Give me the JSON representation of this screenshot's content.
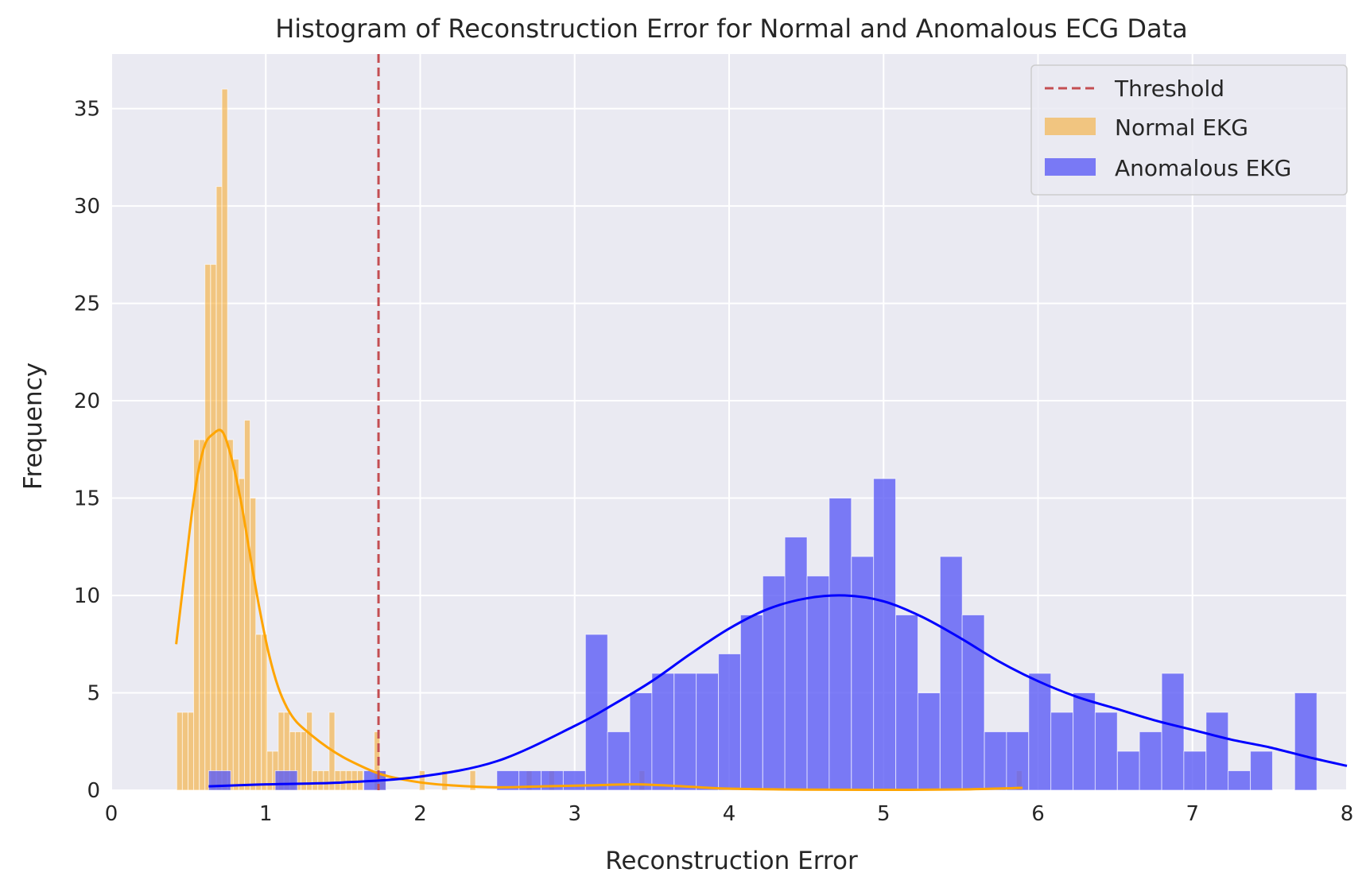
{
  "chart_data": {
    "type": "bar",
    "title": "Histogram of Reconstruction Error for Normal and Anomalous ECG Data",
    "xlabel": "Reconstruction Error",
    "ylabel": "Frequency",
    "xlim": [
      0,
      8
    ],
    "ylim": [
      0,
      37.8
    ],
    "xticks": [
      0,
      1,
      2,
      3,
      4,
      5,
      6,
      7,
      8
    ],
    "yticks": [
      0,
      5,
      10,
      15,
      20,
      25,
      30,
      35
    ],
    "grid": true,
    "legend_position": "top-right",
    "threshold": {
      "name": "Threshold",
      "x": 1.73,
      "color": "#c44e52"
    },
    "colors": {
      "background": "#eaeaf2",
      "grid": "#ffffff",
      "text": "#262626"
    },
    "series": [
      {
        "name": "Normal EKG",
        "color": "#f5a623",
        "fill_opacity": 0.55,
        "kde_color": "#ffa500",
        "bin_width": 0.0365,
        "bins": [
          {
            "x": 0.424,
            "count": 4
          },
          {
            "x": 0.46,
            "count": 4
          },
          {
            "x": 0.497,
            "count": 4
          },
          {
            "x": 0.533,
            "count": 18
          },
          {
            "x": 0.57,
            "count": 18
          },
          {
            "x": 0.606,
            "count": 27
          },
          {
            "x": 0.643,
            "count": 27
          },
          {
            "x": 0.68,
            "count": 31
          },
          {
            "x": 0.716,
            "count": 36
          },
          {
            "x": 0.753,
            "count": 18
          },
          {
            "x": 0.789,
            "count": 17
          },
          {
            "x": 0.826,
            "count": 16
          },
          {
            "x": 0.862,
            "count": 19
          },
          {
            "x": 0.899,
            "count": 15
          },
          {
            "x": 0.935,
            "count": 8
          },
          {
            "x": 0.972,
            "count": 8
          },
          {
            "x": 1.008,
            "count": 2
          },
          {
            "x": 1.045,
            "count": 2
          },
          {
            "x": 1.081,
            "count": 4
          },
          {
            "x": 1.118,
            "count": 4
          },
          {
            "x": 1.155,
            "count": 3
          },
          {
            "x": 1.191,
            "count": 3
          },
          {
            "x": 1.228,
            "count": 3
          },
          {
            "x": 1.264,
            "count": 4
          },
          {
            "x": 1.301,
            "count": 1
          },
          {
            "x": 1.337,
            "count": 1
          },
          {
            "x": 1.374,
            "count": 1
          },
          {
            "x": 1.41,
            "count": 4
          },
          {
            "x": 1.447,
            "count": 1
          },
          {
            "x": 1.483,
            "count": 1
          },
          {
            "x": 1.52,
            "count": 1
          },
          {
            "x": 1.556,
            "count": 1
          },
          {
            "x": 1.593,
            "count": 1
          },
          {
            "x": 1.702,
            "count": 3
          },
          {
            "x": 1.739,
            "count": 1
          },
          {
            "x": 1.994,
            "count": 1
          },
          {
            "x": 2.14,
            "count": 1
          },
          {
            "x": 2.322,
            "count": 1
          },
          {
            "x": 2.687,
            "count": 1
          },
          {
            "x": 2.833,
            "count": 1
          },
          {
            "x": 3.417,
            "count": 1
          },
          {
            "x": 5.86,
            "count": 1
          }
        ],
        "kde": {
          "x": [
            0.42,
            0.48,
            0.54,
            0.6,
            0.66,
            0.72,
            0.78,
            0.84,
            0.9,
            0.96,
            1.02,
            1.08,
            1.14,
            1.2,
            1.3,
            1.4,
            1.5,
            1.6,
            1.7,
            1.8,
            2.0,
            2.2,
            2.5,
            2.8,
            3.1,
            3.4,
            3.7,
            4.0,
            4.5,
            5.0,
            5.5,
            5.9
          ],
          "y": [
            7.5,
            11.5,
            15.3,
            17.6,
            18.3,
            18.4,
            17.0,
            14.8,
            12.0,
            9.3,
            7.0,
            5.3,
            4.2,
            3.5,
            2.8,
            2.2,
            1.7,
            1.3,
            0.95,
            0.7,
            0.4,
            0.25,
            0.15,
            0.2,
            0.25,
            0.3,
            0.2,
            0.08,
            0.03,
            0.02,
            0.04,
            0.12
          ]
        }
      },
      {
        "name": "Anomalous EKG",
        "color": "#5c5cf5",
        "fill_opacity": 0.8,
        "kde_color": "#0000ff",
        "bin_width": 0.1435,
        "bins": [
          {
            "x": 0.63,
            "count": 1
          },
          {
            "x": 1.061,
            "count": 1
          },
          {
            "x": 1.635,
            "count": 1
          },
          {
            "x": 2.496,
            "count": 1
          },
          {
            "x": 2.639,
            "count": 1
          },
          {
            "x": 2.783,
            "count": 1
          },
          {
            "x": 2.926,
            "count": 1
          },
          {
            "x": 3.07,
            "count": 8
          },
          {
            "x": 3.213,
            "count": 3
          },
          {
            "x": 3.357,
            "count": 5
          },
          {
            "x": 3.5,
            "count": 6
          },
          {
            "x": 3.644,
            "count": 6
          },
          {
            "x": 3.787,
            "count": 6
          },
          {
            "x": 3.931,
            "count": 7
          },
          {
            "x": 4.074,
            "count": 9
          },
          {
            "x": 4.218,
            "count": 11
          },
          {
            "x": 4.361,
            "count": 13
          },
          {
            "x": 4.505,
            "count": 11
          },
          {
            "x": 4.648,
            "count": 15
          },
          {
            "x": 4.792,
            "count": 12
          },
          {
            "x": 4.935,
            "count": 16
          },
          {
            "x": 5.079,
            "count": 9
          },
          {
            "x": 5.222,
            "count": 5
          },
          {
            "x": 5.366,
            "count": 12
          },
          {
            "x": 5.509,
            "count": 9
          },
          {
            "x": 5.653,
            "count": 3
          },
          {
            "x": 5.796,
            "count": 3
          },
          {
            "x": 5.94,
            "count": 6
          },
          {
            "x": 6.083,
            "count": 4
          },
          {
            "x": 6.227,
            "count": 5
          },
          {
            "x": 6.37,
            "count": 4
          },
          {
            "x": 6.514,
            "count": 2
          },
          {
            "x": 6.657,
            "count": 3
          },
          {
            "x": 6.801,
            "count": 6
          },
          {
            "x": 6.944,
            "count": 2
          },
          {
            "x": 7.088,
            "count": 4
          },
          {
            "x": 7.231,
            "count": 1
          },
          {
            "x": 7.375,
            "count": 2
          },
          {
            "x": 7.662,
            "count": 5
          }
        ],
        "kde": {
          "x": [
            0.63,
            1.0,
            1.5,
            2.0,
            2.5,
            3.0,
            3.25,
            3.5,
            3.75,
            4.0,
            4.25,
            4.5,
            4.75,
            5.0,
            5.25,
            5.5,
            5.75,
            6.0,
            6.25,
            6.5,
            6.75,
            7.0,
            7.25,
            7.5,
            7.75,
            8.0
          ],
          "y": [
            0.2,
            0.3,
            0.4,
            0.7,
            1.5,
            3.3,
            4.4,
            5.6,
            7.0,
            8.3,
            9.3,
            9.85,
            10.0,
            9.7,
            8.9,
            7.8,
            6.6,
            5.6,
            4.8,
            4.2,
            3.6,
            3.1,
            2.6,
            2.2,
            1.7,
            1.25
          ]
        }
      }
    ]
  }
}
